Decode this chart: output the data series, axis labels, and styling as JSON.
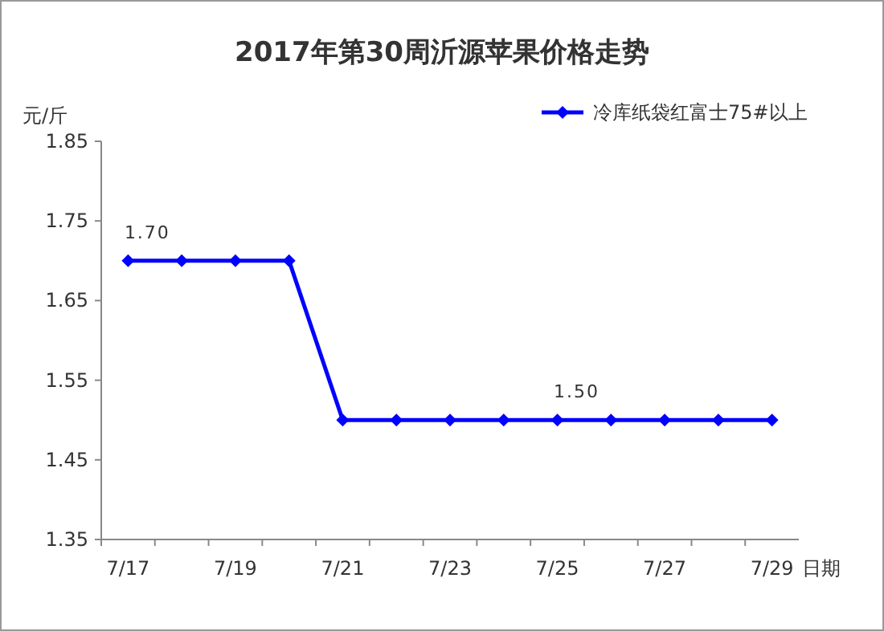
{
  "chart_data": {
    "type": "line",
    "title": "2017年第30周沂源苹果价格走势",
    "xlabel": "日期",
    "ylabel": "元/斤",
    "categories": [
      "7/17",
      null,
      "7/19",
      null,
      "7/21",
      null,
      "7/23",
      null,
      "7/25",
      null,
      "7/27",
      null,
      "7/29"
    ],
    "series": [
      {
        "name": "冷库纸袋红富士75#以上",
        "color": "#0000ff",
        "values": [
          1.7,
          1.7,
          1.7,
          1.7,
          1.5,
          1.5,
          1.5,
          1.5,
          1.5,
          1.5,
          1.5,
          1.5,
          1.5
        ],
        "value_labels": [
          "1.70",
          null,
          null,
          null,
          null,
          null,
          null,
          null,
          "1.50",
          null,
          null,
          null,
          null
        ]
      }
    ],
    "ylim": [
      1.35,
      1.85
    ],
    "yticks": [
      {
        "value": 1.35,
        "label": "1.35"
      },
      {
        "value": 1.45,
        "label": "1.45"
      },
      {
        "value": 1.55,
        "label": "1.55"
      },
      {
        "value": 1.65,
        "label": "1.65"
      },
      {
        "value": 1.75,
        "label": "1.75"
      },
      {
        "value": 1.85,
        "label": "1.85"
      }
    ],
    "marker": "diamond",
    "line_style": "solid",
    "legend": "top right",
    "grid": false
  }
}
